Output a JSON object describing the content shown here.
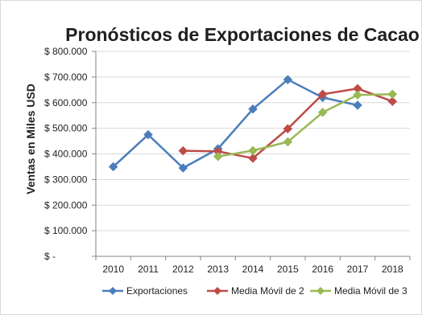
{
  "chart_data": {
    "type": "line",
    "title": "Pronósticos de Exportaciones de Cacao",
    "ylabel": "Ventas en Miles USD",
    "xlabel": "",
    "categories": [
      "2010",
      "2011",
      "2012",
      "2013",
      "2014",
      "2015",
      "2016",
      "2017",
      "2018"
    ],
    "ylim": [
      0,
      800000
    ],
    "yticks": [
      {
        "value": 0,
        "label": "$ -"
      },
      {
        "value": 100000,
        "label": "$ 100.000"
      },
      {
        "value": 200000,
        "label": "$ 200.000"
      },
      {
        "value": 300000,
        "label": "$ 300.000"
      },
      {
        "value": 400000,
        "label": "$ 400.000"
      },
      {
        "value": 500000,
        "label": "$ 500.000"
      },
      {
        "value": 600000,
        "label": "$ 600.000"
      },
      {
        "value": 700000,
        "label": "$ 700.000"
      },
      {
        "value": 800000,
        "label": "$ 800.000"
      }
    ],
    "grid": "horizontal",
    "legend": "bottom",
    "series": [
      {
        "name": "Exportaciones",
        "color": "#4a7ebb",
        "marker": "diamond",
        "values": [
          350000,
          475000,
          345000,
          420000,
          575000,
          690000,
          620000,
          590000,
          null
        ]
      },
      {
        "name": "Media Móvil de 2",
        "color": "#be4b48",
        "marker": "diamond",
        "values": [
          null,
          null,
          412000,
          410000,
          383000,
          498000,
          633000,
          655000,
          605000
        ]
      },
      {
        "name": "Media Móvil de 3",
        "color": "#98b954",
        "marker": "diamond",
        "values": [
          null,
          null,
          null,
          390000,
          413000,
          447000,
          562000,
          630000,
          633000
        ]
      }
    ]
  }
}
